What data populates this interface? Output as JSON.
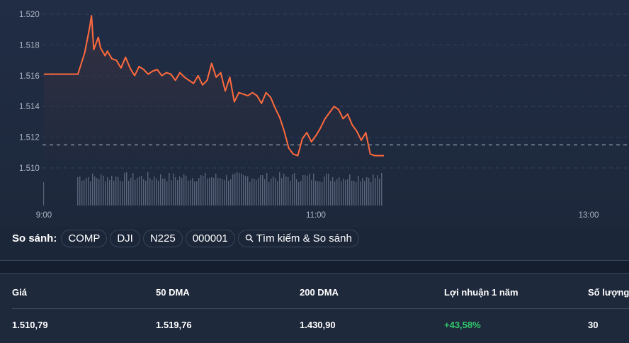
{
  "chart": {
    "y_ticks": [
      "1.520",
      "1.518",
      "1.516",
      "1.514",
      "1.512",
      "1.510"
    ],
    "x_ticks": [
      "9:00",
      "11:00",
      "13:00"
    ],
    "line_color": "#ff6a3d",
    "reference_line_value": 1511.5
  },
  "compare": {
    "label": "So sánh:",
    "chips": [
      "COMP",
      "DJI",
      "N225",
      "000001"
    ],
    "search_label": "Tìm kiếm & So sánh"
  },
  "stats": {
    "headers": [
      "Giá",
      "50 DMA",
      "200 DMA",
      "Lợi nhuận 1 năm",
      "Số lượng"
    ],
    "values": [
      "1.510,79",
      "1.519,76",
      "1.430,90",
      "+43,58%",
      "30"
    ],
    "positive_color": "#2fc76a"
  },
  "chart_data": {
    "type": "line",
    "title": "",
    "xlabel": "",
    "ylabel": "",
    "x_tick_labels": [
      "9:00",
      "11:00",
      "13:00"
    ],
    "y_tick_labels": [
      "1.510",
      "1.512",
      "1.514",
      "1.516",
      "1.518",
      "1.520"
    ],
    "ylim": [
      1509.5,
      1520.5
    ],
    "grid": true,
    "legend": "none",
    "reference_line": 1511.5,
    "series": [
      {
        "name": "Price",
        "x": [
          "09:00",
          "09:15",
          "09:18",
          "09:20",
          "09:21",
          "09:22",
          "09:23",
          "09:24",
          "09:25",
          "09:27",
          "09:28",
          "09:30",
          "09:32",
          "09:34",
          "09:36",
          "09:38",
          "09:40",
          "09:42",
          "09:44",
          "09:46",
          "09:48",
          "09:50",
          "09:52",
          "09:54",
          "09:56",
          "09:58",
          "10:00",
          "10:02",
          "10:04",
          "10:06",
          "10:08",
          "10:10",
          "10:12",
          "10:14",
          "10:16",
          "10:18",
          "10:20",
          "10:22",
          "10:24",
          "10:26",
          "10:28",
          "10:30",
          "10:32",
          "10:34",
          "10:36",
          "10:38",
          "10:40",
          "10:42",
          "10:44",
          "10:46",
          "10:48",
          "10:50",
          "10:52",
          "10:54",
          "10:56",
          "10:58",
          "11:00",
          "11:02",
          "11:04",
          "11:06",
          "11:08",
          "11:10",
          "11:12",
          "11:14",
          "11:16",
          "11:18",
          "11:20",
          "11:22",
          "11:24",
          "11:26",
          "11:28",
          "11:30"
        ],
        "values": [
          1516.1,
          1516.1,
          1517.5,
          1519.0,
          1519.9,
          1517.7,
          1518.1,
          1518.5,
          1517.8,
          1517.3,
          1517.6,
          1517.1,
          1517.0,
          1516.5,
          1517.2,
          1516.5,
          1516.0,
          1516.6,
          1516.4,
          1516.1,
          1516.3,
          1516.4,
          1516.0,
          1516.2,
          1516.1,
          1515.7,
          1516.2,
          1515.9,
          1515.7,
          1515.5,
          1516.0,
          1515.4,
          1515.7,
          1516.8,
          1515.9,
          1516.2,
          1515.0,
          1515.9,
          1514.3,
          1514.9,
          1514.8,
          1514.7,
          1514.9,
          1514.7,
          1514.2,
          1514.9,
          1514.6,
          1513.9,
          1513.3,
          1512.4,
          1511.3,
          1510.9,
          1510.8,
          1511.9,
          1512.3,
          1511.7,
          1512.1,
          1512.6,
          1513.2,
          1513.6,
          1514.0,
          1513.8,
          1513.2,
          1513.5,
          1512.8,
          1512.4,
          1511.8,
          1512.3,
          1510.9,
          1510.8,
          1510.8,
          1510.8
        ],
        "color": "#ff6a3d"
      }
    ]
  }
}
